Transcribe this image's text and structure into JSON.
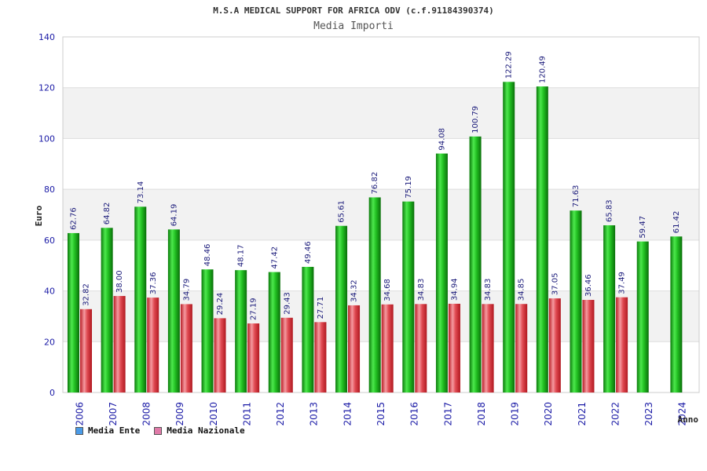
{
  "chart_data": {
    "type": "bar",
    "title": "M.S.A MEDICAL SUPPORT FOR AFRICA ODV (c.f.91184390374)",
    "subtitle": "Media Importi",
    "xlabel": "Anno",
    "ylabel": "Euro",
    "ylim": [
      0,
      140
    ],
    "yticks": [
      0,
      20,
      40,
      60,
      80,
      100,
      120,
      140
    ],
    "categories": [
      "2006",
      "2007",
      "2008",
      "2009",
      "2010",
      "2011",
      "2012",
      "2013",
      "2014",
      "2015",
      "2016",
      "2017",
      "2018",
      "2019",
      "2020",
      "2021",
      "2022",
      "2023",
      "2024"
    ],
    "series": [
      {
        "name": "Media Ente",
        "color": "#1fb81f",
        "values": [
          62.76,
          64.82,
          73.14,
          64.19,
          48.46,
          48.17,
          47.42,
          49.46,
          65.61,
          76.82,
          75.19,
          94.08,
          100.79,
          122.29,
          120.49,
          71.63,
          65.83,
          59.47,
          61.42
        ],
        "labels": [
          "62.76",
          "64.82",
          "73.14",
          "64.19",
          "48.46",
          "48.17",
          "47.42",
          "49.46",
          "65.61",
          "76.82",
          "75.19",
          "94.08",
          "100.79",
          "122.29",
          "120.49",
          "71.63",
          "65.83",
          "59.47",
          "61.42"
        ]
      },
      {
        "name": "Media Nazionale",
        "color": "#e0303a",
        "values": [
          32.82,
          38.0,
          37.36,
          34.79,
          29.24,
          27.19,
          29.43,
          27.71,
          34.32,
          34.68,
          34.83,
          34.94,
          34.83,
          34.85,
          37.05,
          36.46,
          37.49,
          null,
          null
        ],
        "labels": [
          "32.82",
          "38.00",
          "37.36",
          "34.79",
          "29.24",
          "27.19",
          "29.43",
          "27.71",
          "34.32",
          "34.68",
          "34.83",
          "34.94",
          "34.83",
          "34.85",
          "37.05",
          "36.46",
          "37.49",
          "",
          ""
        ]
      }
    ],
    "legend": {
      "position": "bottom-left",
      "items": [
        {
          "label": "Media Ente",
          "color": "#4a9be8"
        },
        {
          "label": "Media Nazionale",
          "color": "#e07aa8"
        }
      ]
    },
    "grid": true
  }
}
